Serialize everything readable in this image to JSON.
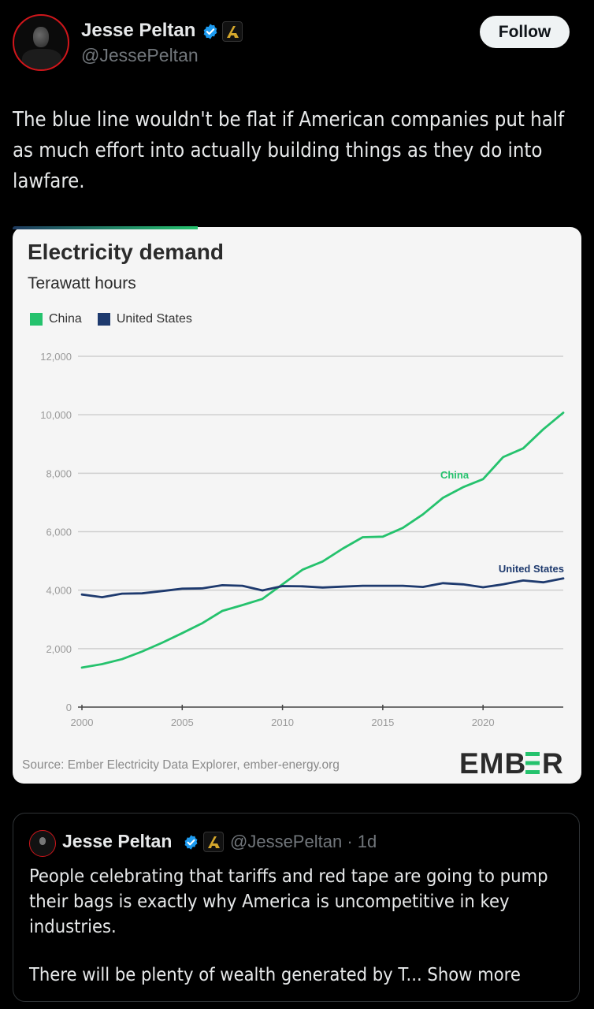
{
  "author": {
    "name": "Jesse Peltan",
    "handle": "@JessePeltan",
    "verified": "verified-badge-icon",
    "affiliation": "affiliate-badge-icon"
  },
  "follow_button": {
    "label": "Follow"
  },
  "tweet": {
    "text": "The blue line wouldn't be flat if American companies put half as much effort into actually building things as they do into lawfare."
  },
  "chart_card": {
    "source": "Source: Ember Electricity Data Explorer, ember-energy.org",
    "logo": "EMBER"
  },
  "chart_data": {
    "type": "line",
    "title": "Electricity demand",
    "subtitle": "Terawatt hours",
    "xlabel": "",
    "ylabel": "Terawatt hours",
    "legend_position": "top-left",
    "grid": true,
    "x": [
      2000,
      2001,
      2002,
      2003,
      2004,
      2005,
      2006,
      2007,
      2008,
      2009,
      2010,
      2011,
      2012,
      2013,
      2014,
      2015,
      2016,
      2017,
      2018,
      2019,
      2020,
      2021,
      2022,
      2023,
      2024
    ],
    "xlim": [
      2000,
      2024
    ],
    "ylim": [
      0,
      12000
    ],
    "xticks": [
      "2000",
      "2005",
      "2010",
      "2015",
      "2020"
    ],
    "yticks": [
      "0",
      "2,000",
      "4,000",
      "6,000",
      "8,000",
      "10,000",
      "12,000"
    ],
    "series": [
      {
        "name": "China",
        "color": "#25c26d",
        "label": "China",
        "values": [
          1350,
          1470,
          1640,
          1900,
          2200,
          2530,
          2870,
          3290,
          3490,
          3700,
          4200,
          4700,
          4980,
          5420,
          5810,
          5830,
          6130,
          6590,
          7160,
          7520,
          7800,
          8550,
          8850,
          9500,
          10070
        ]
      },
      {
        "name": "United States",
        "color": "#1e3a6e",
        "label": "United States",
        "values": [
          3850,
          3760,
          3880,
          3890,
          3970,
          4050,
          4060,
          4170,
          4150,
          3990,
          4140,
          4130,
          4090,
          4120,
          4150,
          4150,
          4150,
          4110,
          4240,
          4200,
          4100,
          4200,
          4330,
          4270,
          4400
        ]
      }
    ]
  },
  "quoted_tweet": {
    "name": "Jesse Peltan",
    "handle": "@JessePeltan",
    "time": "· 1d",
    "text": "People celebrating that tariffs and red tape are going to pump their bags is exactly why America is uncompetitive in key industries.",
    "text2": "There will be plenty of wealth generated by T...",
    "show_more": "Show more"
  }
}
